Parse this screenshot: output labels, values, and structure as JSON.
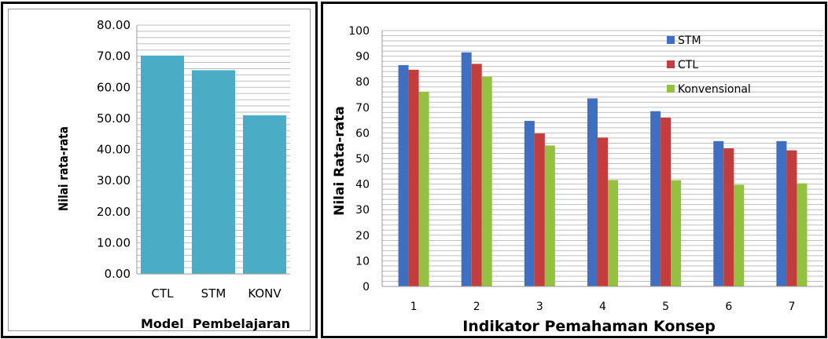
{
  "chart_data": [
    {
      "type": "bar",
      "categories": [
        "CTL",
        "STM",
        "KONV"
      ],
      "values": [
        70.2,
        65.5,
        51.0
      ],
      "title": "",
      "xlabel": "Model  Pembelajaran",
      "ylabel": "Nilai  rata-rata",
      "ylim": [
        0,
        80
      ],
      "yticks": [
        "0.00",
        "10.00",
        "20.00",
        "30.00",
        "40.00",
        "50.00",
        "60.00",
        "70.00",
        "80.00"
      ],
      "grid": true,
      "colors": {
        "bar": "#4bacc6",
        "grid": "#bfbfbf"
      }
    },
    {
      "type": "bar",
      "categories": [
        "1",
        "2",
        "3",
        "4",
        "5",
        "6",
        "7"
      ],
      "series": [
        {
          "name": "STM",
          "values": [
            86.5,
            91.5,
            64.7,
            73.5,
            68.5,
            56.8,
            56.8
          ]
        },
        {
          "name": "CTL",
          "values": [
            84.7,
            87.0,
            59.8,
            58.2,
            66.0,
            54.0,
            53.2
          ]
        },
        {
          "name": "Konvensional",
          "values": [
            76.1,
            82.0,
            55.1,
            41.6,
            41.5,
            39.7,
            40.3
          ]
        }
      ],
      "title": "",
      "xlabel": "Indikator Pemahaman Konsep",
      "ylabel": "Nilai Rata-rata",
      "ylim": [
        0,
        100
      ],
      "yticks": [
        "0",
        "10",
        "20",
        "30",
        "40",
        "50",
        "60",
        "70",
        "80",
        "90",
        "100"
      ],
      "grid": true,
      "legend": "top-right",
      "colors": {
        "STM": "#3e6fc2",
        "CTL": "#c43d3d",
        "Konvensional": "#92c23f",
        "grid": "#bfbfbf"
      }
    }
  ]
}
